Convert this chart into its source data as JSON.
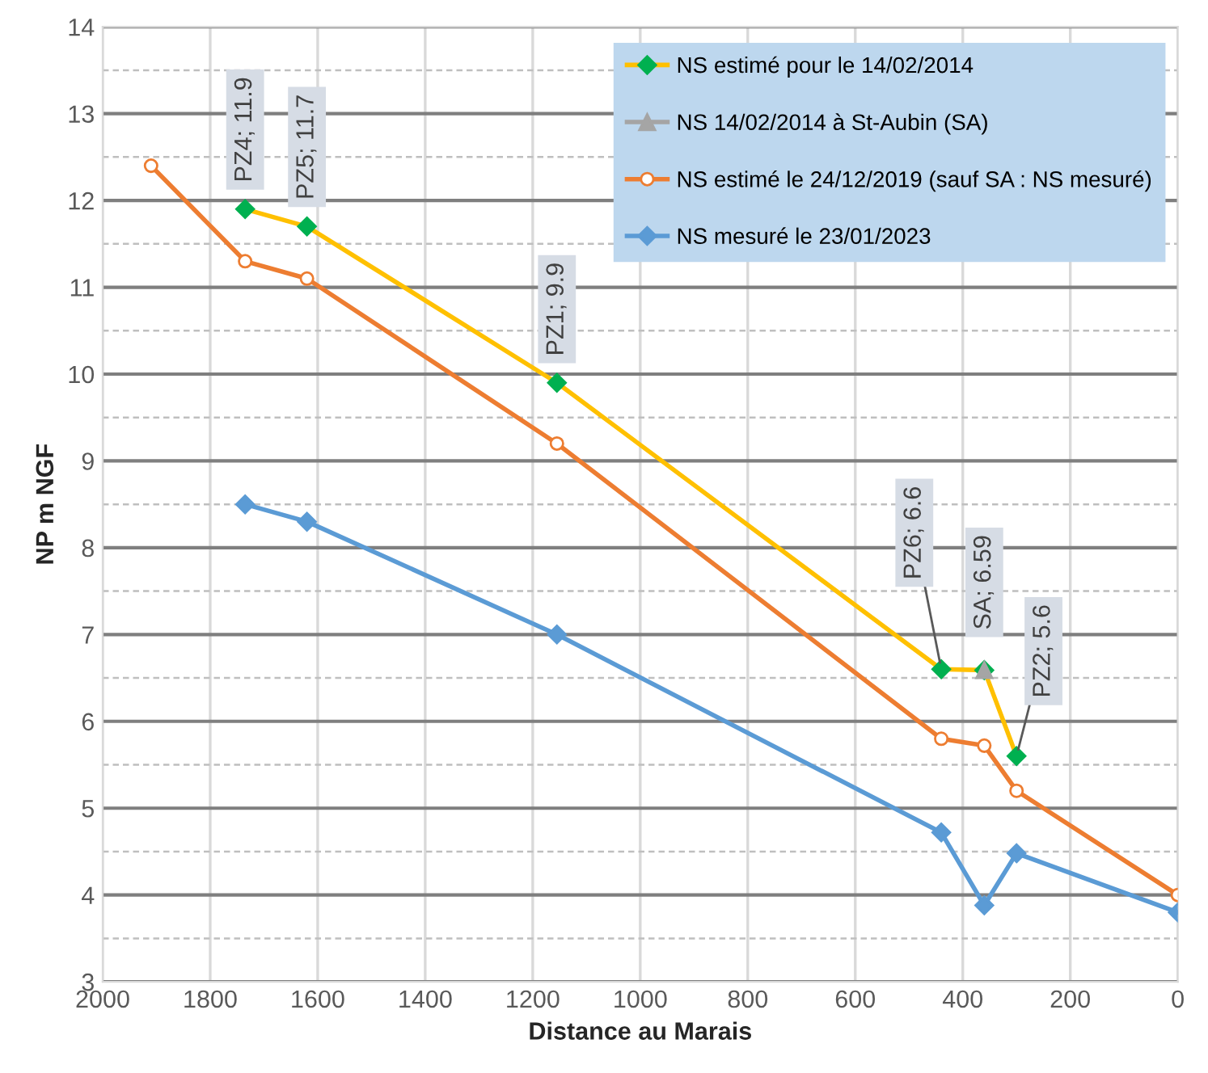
{
  "chart_data": {
    "type": "line",
    "xlabel": "Distance au Marais",
    "ylabel": "NP m NGF",
    "xlim": [
      2000,
      0
    ],
    "xticks": [
      2000,
      1800,
      1600,
      1400,
      1200,
      1000,
      800,
      600,
      400,
      200,
      0
    ],
    "ylim": [
      3,
      14
    ],
    "yticks": [
      3,
      {
        "value": 3.5,
        "label": null
      },
      4,
      {
        "value": 4.5,
        "label": null
      },
      5,
      {
        "value": 5.5,
        "label": null
      },
      6,
      {
        "value": 6.5,
        "label": null
      },
      7,
      {
        "value": 7.5,
        "label": null
      },
      8,
      {
        "value": 8.5,
        "label": null
      },
      9,
      {
        "value": 9.5,
        "label": null
      },
      10,
      {
        "value": 10.5,
        "label": null
      },
      11,
      {
        "value": 11.5,
        "label": null
      },
      12,
      {
        "value": 12.5,
        "label": null
      },
      13,
      {
        "value": 13.5,
        "label": null
      },
      14
    ],
    "grid": true,
    "legend": "top right",
    "line_style": "solid",
    "series": [
      {
        "name": "NS estimé pour le 14/02/2014",
        "color": "#ffc000",
        "marker": "diamond",
        "colors": [
          "#00b050",
          "#00b050",
          "#00b050",
          "#00b050",
          "#00b050",
          "#00b050"
        ],
        "x": [
          1735,
          1620,
          1155,
          440,
          360,
          300
        ],
        "values": [
          11.9,
          11.7,
          9.9,
          6.6,
          6.59,
          5.6
        ]
      },
      {
        "name": "NS 14/02/2014 à St-Aubin (SA)",
        "color": "#a5a5a5",
        "marker": "triangle",
        "colors": [
          "#a5a5a5"
        ],
        "x": [
          360
        ],
        "values": [
          6.59
        ]
      },
      {
        "name": "NS estimé le 24/12/2019 (sauf SA : NS mesuré)",
        "color": "#ed7d31",
        "marker": "circle",
        "colors": [
          "#ffffff",
          "#ffffff",
          "#ffffff",
          "#ffffff",
          "#ffffff",
          "#ffffff",
          "#ffffff",
          "#ffffff"
        ],
        "x": [
          1910,
          1735,
          1620,
          1155,
          440,
          360,
          300,
          0
        ],
        "values": [
          12.4,
          11.3,
          11.1,
          9.2,
          5.8,
          5.72,
          5.2,
          4.0
        ]
      },
      {
        "name": "NS mesuré le 23/01/2023",
        "color": "#5b9bd5",
        "marker": "diamond",
        "colors": [
          "#5b9bd5",
          "#5b9bd5",
          "#5b9bd5",
          "#5b9bd5",
          "#5b9bd5",
          "#5b9bd5",
          "#5b9bd5"
        ],
        "x": [
          1735,
          1620,
          1155,
          440,
          360,
          300,
          0
        ],
        "values": [
          8.5,
          8.3,
          7.0,
          4.72,
          3.88,
          4.48,
          3.8
        ]
      }
    ],
    "annotations": [
      {
        "text": "PZ4; 11.9",
        "x": 1735,
        "y": 11.9
      },
      {
        "text": "PZ5; 11.7",
        "x": 1620,
        "y": 11.7
      },
      {
        "text": "PZ1; 9.9",
        "x": 1155,
        "y": 9.9
      },
      {
        "text": "PZ6; 6.6",
        "x": 440,
        "y": 6.6
      },
      {
        "text": "SA; 6.59",
        "x": 360,
        "y": 6.59
      },
      {
        "text": "PZ2; 5.6",
        "x": 300,
        "y": 5.6
      }
    ]
  }
}
